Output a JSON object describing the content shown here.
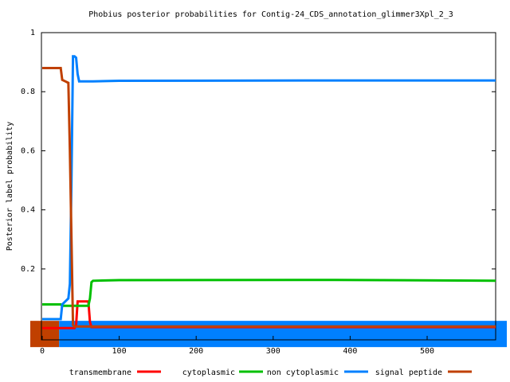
{
  "chart_data": {
    "type": "line",
    "title": "Phobius posterior probabilities for Contig-24_CDS_annotation_glimmer3Xpl_2_3",
    "y_label": "Posterior label probability",
    "x": [
      0,
      24,
      26,
      30,
      34,
      36,
      38,
      40,
      42,
      44,
      46,
      48,
      60,
      62,
      64,
      66,
      100,
      380,
      589
    ],
    "series": [
      {
        "name": "transmembrane",
        "color": "#ff0000",
        "values": [
          0,
          0,
          0,
          0,
          0,
          0,
          0,
          0,
          0,
          0.01,
          0.09,
          0.09,
          0.09,
          0.02,
          0.003,
          0.003,
          0.003,
          0.003,
          0.003
        ]
      },
      {
        "name": "cytoplasmic",
        "color": "#00c000",
        "values": [
          0.08,
          0.08,
          0.075,
          0.075,
          0.075,
          0.075,
          0.075,
          0.075,
          0.075,
          0.075,
          0.075,
          0.075,
          0.075,
          0.1,
          0.155,
          0.16,
          0.162,
          0.163,
          0.16
        ]
      },
      {
        "name": "non cytoplasmic",
        "color": "#0080ff",
        "values": [
          0.03,
          0.03,
          0.08,
          0.09,
          0.1,
          0.15,
          0.5,
          0.92,
          0.92,
          0.915,
          0.86,
          0.835,
          0.835,
          0.835,
          0.835,
          0.835,
          0.837,
          0.838,
          0.838
        ]
      },
      {
        "name": "signal peptide",
        "color": "#c04000",
        "values": [
          0.88,
          0.88,
          0.84,
          0.835,
          0.83,
          0.6,
          0.3,
          0.01,
          0.005,
          0.005,
          0.005,
          0.005,
          0.005,
          0.005,
          0.005,
          0.005,
          0.005,
          0.005,
          0.005
        ]
      }
    ],
    "regions": [
      {
        "start": 0,
        "end": 22,
        "color": "#c04000"
      },
      {
        "start": 22,
        "end": 589,
        "color": "#0080ff"
      }
    ],
    "xlim": [
      -1,
      589
    ],
    "ylim": [
      -0.04,
      1
    ],
    "xticks": [
      0,
      100,
      200,
      300,
      400,
      500
    ],
    "yticks": [
      0.2,
      0.4,
      0.6,
      0.8,
      1
    ]
  }
}
